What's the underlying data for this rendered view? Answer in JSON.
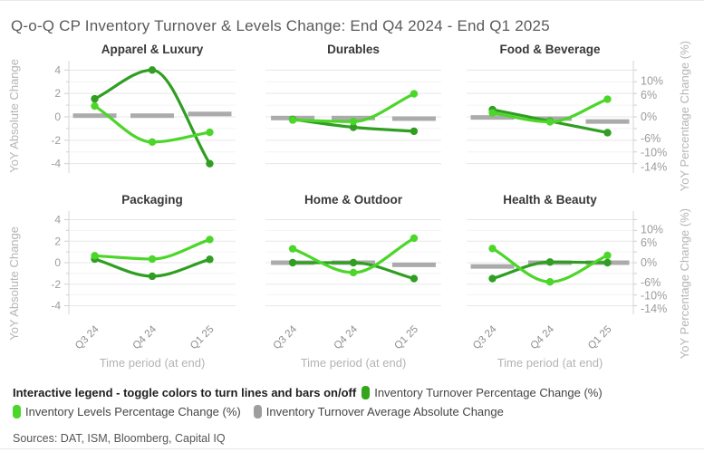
{
  "header": {
    "title": "Q-o-Q CP Inventory Turnover & Levels Change: End Q4 2024 - End Q1 2025"
  },
  "chart_data": {
    "type": "line",
    "layout_hint": "2x3 small multiples, smoothed lines on right % axis, gray bars on left absolute axis",
    "x_labels": [
      "Q3 24",
      "Q4 24",
      "Q1 25"
    ],
    "x_axis_title": "Time period (at end)",
    "left_axis": {
      "title": "YoY Absolute Change",
      "tick_labels": [
        "4",
        "2",
        "0",
        "-2",
        "-4"
      ],
      "tick_values": [
        4,
        2,
        0,
        -2,
        -4
      ],
      "range": [
        -4.8,
        4.8
      ]
    },
    "right_axis": {
      "title": "YoY Percentage Change (%)",
      "tick_labels": [
        "10%",
        "6%",
        "0%",
        "-6%",
        "-10%",
        "-14%"
      ],
      "tick_values": [
        10,
        6,
        0,
        -6,
        -10,
        -14
      ]
    },
    "pct_per_abs_unit": 3.25,
    "panels": [
      {
        "title": "Apparel & Luxury",
        "turnover_pct": [
          5,
          13,
          -13
        ],
        "levels_pct": [
          3,
          -7,
          -4.3
        ],
        "avg_abs": [
          0.1,
          0.1,
          0.25
        ]
      },
      {
        "title": "Durables",
        "turnover_pct": [
          -0.7,
          -2.9,
          -4
        ],
        "levels_pct": [
          -0.9,
          -1.3,
          6.4
        ],
        "avg_abs": [
          -0.1,
          -0.1,
          -0.15
        ]
      },
      {
        "title": "Food & Beverage",
        "turnover_pct": [
          2,
          -1.2,
          -4.4
        ],
        "levels_pct": [
          1.1,
          -1.4,
          4.9
        ],
        "avg_abs": [
          -0.05,
          -0.15,
          -0.4
        ]
      },
      {
        "title": "Packaging",
        "turnover_pct": [
          1.1,
          -4.1,
          1
        ],
        "levels_pct": [
          2.1,
          1.1,
          7
        ],
        "avg_abs": null
      },
      {
        "title": "Home & Outdoor",
        "turnover_pct": [
          0,
          0,
          -4.8
        ],
        "levels_pct": [
          4.2,
          -3,
          7.4
        ],
        "avg_abs": [
          0,
          0,
          -0.2
        ]
      },
      {
        "title": "Health & Beauty",
        "turnover_pct": [
          -4.8,
          0.2,
          0
        ],
        "levels_pct": [
          4.3,
          -5.8,
          2.2
        ],
        "avg_abs": [
          -0.35,
          0,
          0
        ]
      }
    ],
    "colors": {
      "turnover": "#2f9e21",
      "levels": "#4cd629",
      "avg_abs": "#ababab",
      "grid_major": "#e7e7e7",
      "grid_minor": "#f4f4f4",
      "axis_line": "#d6d6d6",
      "tick_text": "#9b9b9b"
    }
  },
  "legend": {
    "intro": "Interactive legend - toggle colors to turn lines and bars on/off",
    "items": [
      {
        "label": "Inventory Turnover Percentage Change (%)",
        "color": "#35a51d"
      },
      {
        "label": "Inventory Levels Percentage Change (%)",
        "color": "#4cd629"
      },
      {
        "label": "Inventory Turnover Average Absolute Change",
        "color": "#9e9e9e"
      }
    ]
  },
  "footer": {
    "sources": "Sources: DAT, ISM, Bloomberg, Capital IQ"
  }
}
